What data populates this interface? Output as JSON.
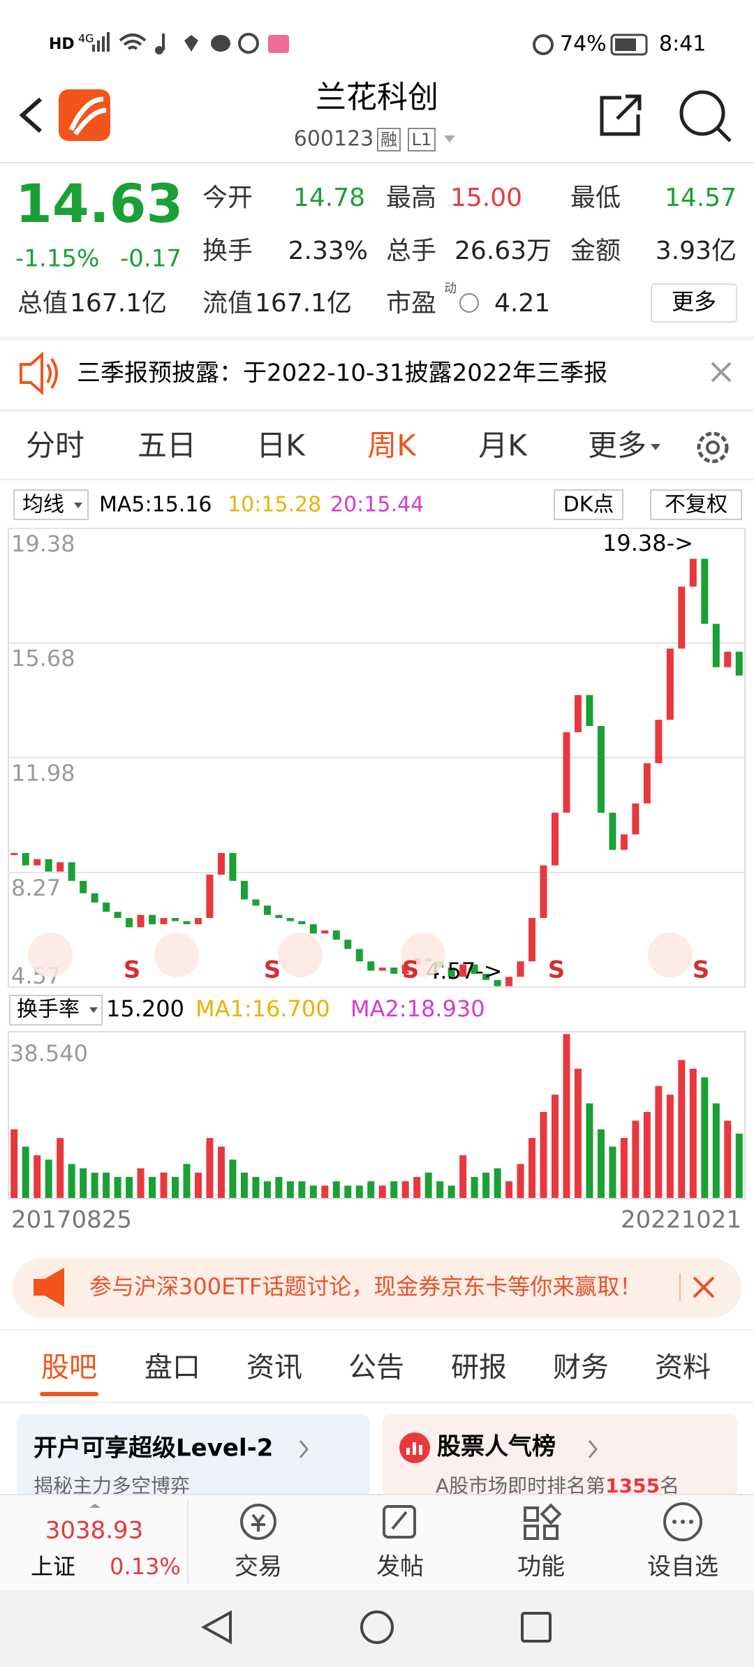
{
  "status_bar": {
    "hd": "HD",
    "network": "4G",
    "battery": "74%",
    "time": "8:41"
  },
  "header": {
    "title": "兰花科创",
    "code": "600123",
    "tags": [
      "融",
      "L1"
    ]
  },
  "quote": {
    "price": "14.63",
    "change_pct": "-1.15%",
    "change": "-0.17",
    "stats": [
      {
        "label": "今开",
        "value": "14.78",
        "color": "#1aa034"
      },
      {
        "label": "最高",
        "value": "15.00",
        "color": "#e8383d"
      },
      {
        "label": "最低",
        "value": "14.57",
        "color": "#1aa034"
      },
      {
        "label": "换手",
        "value": "2.33%",
        "color": "#222222"
      },
      {
        "label": "总手",
        "value": "26.63万",
        "color": "#222222"
      },
      {
        "label": "金额",
        "value": "3.93亿",
        "color": "#222222"
      },
      {
        "label": "总值",
        "value": "167.1亿",
        "color": "#222222"
      },
      {
        "label": "流值",
        "value": "167.1亿",
        "color": "#222222"
      },
      {
        "label": "市盈",
        "value": "4.21",
        "color": "#222222"
      }
    ],
    "pe_tag": "动",
    "more": "更多"
  },
  "notice": "三季报预披露：于2022-10-31披露2022年三季报",
  "period_tabs": {
    "items": [
      "分时",
      "五日",
      "日K",
      "周K",
      "月K",
      "更多"
    ],
    "active": 3
  },
  "chart_toolbar": {
    "indicator": "均线",
    "ma5": "MA5:15.16",
    "ma10": "10:15.28",
    "ma20": "20:15.44",
    "dk": "DK点",
    "adjust": "不复权"
  },
  "chart_data": [
    {
      "type": "candlestick",
      "values": [
        8.9,
        8.5,
        8.7,
        8.3,
        8.6,
        8.0,
        7.6,
        7.3,
        7.0,
        6.8,
        6.5,
        6.9,
        6.6,
        6.8,
        6.7,
        6.6,
        6.8,
        8.2,
        8.9,
        8.0,
        7.4,
        7.2,
        6.9,
        6.8,
        6.7,
        6.6,
        6.3,
        6.4,
        6.1,
        5.8,
        5.4,
        5.1,
        5.2,
        5.0,
        5.3,
        5.5,
        5.4,
        5.2,
        4.9,
        5.3,
        5.0,
        4.8,
        4.6,
        4.9,
        5.4,
        6.8,
        8.5,
        10.2,
        12.8,
        14.0,
        13.0,
        10.2,
        9.0,
        9.5,
        10.5,
        11.8,
        13.2,
        15.5,
        17.5,
        18.4,
        16.3,
        14.9,
        15.4,
        14.63
      ],
      "up_color": "#e8383d",
      "down_color": "#1aa034",
      "ylim": [
        4.57,
        19.38
      ],
      "yticks": [
        19.38,
        15.68,
        11.98,
        8.27,
        4.57
      ],
      "grid": true,
      "annotations": [
        "19.38->",
        "4.57->"
      ],
      "signals": [
        "S",
        "S",
        "S",
        "S",
        "S"
      ]
    },
    {
      "type": "bar",
      "indicator": "换手率",
      "current": "15.200",
      "ma1": "MA1:16.700",
      "ma2": "MA2:18.930",
      "values": [
        16,
        12,
        10,
        9,
        14,
        8,
        7,
        6,
        6,
        5,
        5,
        7,
        5,
        6,
        5,
        8,
        6,
        14,
        12,
        9,
        6,
        5,
        4,
        5,
        4,
        4,
        3,
        3,
        4,
        3,
        3,
        4,
        3,
        4,
        4,
        5,
        6,
        4,
        3,
        10,
        5,
        6,
        7,
        4,
        8,
        14,
        20,
        24,
        38,
        30,
        22,
        16,
        12,
        14,
        18,
        20,
        26,
        24,
        32,
        30,
        28,
        22,
        18,
        15
      ],
      "ylim": [
        0,
        38.54
      ],
      "yticks": [
        {
          "value": 38.54,
          "label": "38.540"
        }
      ],
      "x_labels": [
        "20170825",
        "20221021"
      ]
    }
  ],
  "ad_banner": "参与沪深300ETF话题讨论，现金券京东卡等你来赢取！",
  "content_tabs": {
    "items": [
      "股吧",
      "盘口",
      "资讯",
      "公告",
      "研报",
      "财务",
      "资料"
    ],
    "active": 0
  },
  "cards": [
    {
      "title": "开户可享超级Level-2",
      "subtitle": "揭秘主力多空博弈"
    },
    {
      "title": "股票人气榜",
      "subtitle_prefix": "A股市场即时排名第",
      "rank": "1355",
      "subtitle_suffix": "名"
    }
  ],
  "bottom_nav": {
    "index_value": "3038.93",
    "index_name": "上证",
    "index_pct": "0.13%",
    "items": [
      "交易",
      "发帖",
      "功能",
      "设自选"
    ]
  }
}
